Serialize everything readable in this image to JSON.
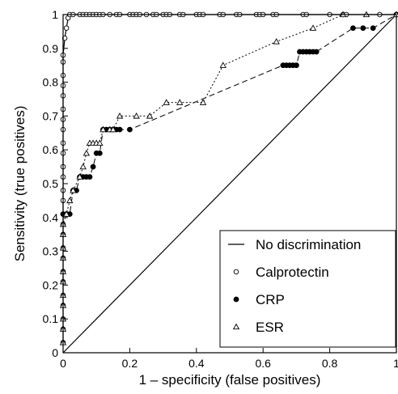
{
  "chart_data": {
    "type": "line",
    "xlabel": "1 – specificity (false positives)",
    "ylabel": "Sensitivity (true positives)",
    "xlim": [
      0,
      1
    ],
    "ylim": [
      0,
      1
    ],
    "x_ticks": [
      0,
      0.2,
      0.4,
      0.6,
      0.8,
      1
    ],
    "x_tick_labels": [
      "0",
      "0.2",
      "0.4",
      "0.6",
      "0.8",
      "1"
    ],
    "y_ticks": [
      0,
      0.1,
      0.2,
      0.3,
      0.4,
      0.5,
      0.6,
      0.7,
      0.8,
      0.9,
      1
    ],
    "y_tick_labels": [
      "0",
      "0.1",
      "0.2",
      "0.3",
      "0.4",
      "0.5",
      "0.6",
      "0.7",
      "0.8",
      "0.9",
      "1"
    ],
    "grid": false,
    "legend_position": "bottom-right",
    "series": [
      {
        "name": "No discrimination",
        "line": "solid",
        "marker": "none",
        "x": [
          0,
          1
        ],
        "y": [
          0,
          1
        ]
      },
      {
        "name": "Calprotectin",
        "line": "solid",
        "marker": "open-circle",
        "x": [
          0,
          0,
          0,
          0,
          0,
          0,
          0,
          0,
          0,
          0,
          0,
          0,
          0,
          0,
          0,
          0,
          0,
          0,
          0,
          0,
          0,
          0,
          0,
          0,
          0,
          0,
          0.005,
          0.01,
          0.015,
          0.02,
          0.03,
          0.05,
          0.06,
          0.07,
          0.08,
          0.09,
          0.1,
          0.11,
          0.12,
          0.14,
          0.16,
          0.17,
          0.2,
          0.21,
          0.22,
          0.23,
          0.25,
          0.27,
          0.28,
          0.3,
          0.31,
          0.32,
          0.35,
          0.36,
          0.4,
          0.41,
          0.42,
          0.47,
          0.48,
          0.52,
          0.53,
          0.58,
          0.59,
          0.6,
          0.63,
          0.64,
          0.72,
          0.73,
          0.8,
          0.84,
          0.85,
          0.95,
          1
        ],
        "y": [
          0.03,
          0.07,
          0.1,
          0.14,
          0.17,
          0.21,
          0.24,
          0.28,
          0.31,
          0.35,
          0.38,
          0.41,
          0.45,
          0.48,
          0.52,
          0.55,
          0.59,
          0.62,
          0.66,
          0.69,
          0.72,
          0.76,
          0.79,
          0.82,
          0.86,
          0.88,
          0.93,
          0.96,
          0.99,
          1,
          1,
          1,
          1,
          1,
          1,
          1,
          1,
          1,
          1,
          1,
          1,
          1,
          1,
          1,
          1,
          1,
          1,
          1,
          1,
          1,
          1,
          1,
          1,
          1,
          1,
          1,
          1,
          1,
          1,
          1,
          1,
          1,
          1,
          1,
          1,
          1,
          1,
          1,
          1,
          1,
          1,
          1,
          1
        ]
      },
      {
        "name": "CRP",
        "line": "dashed",
        "marker": "filled-circle",
        "x": [
          0,
          0.01,
          0.02,
          0.03,
          0.04,
          0.05,
          0.06,
          0.07,
          0.08,
          0.09,
          0.1,
          0.11,
          0.12,
          0.13,
          0.14,
          0.15,
          0.16,
          0.17,
          0.2,
          0.66,
          0.67,
          0.68,
          0.69,
          0.7,
          0.71,
          0.72,
          0.73,
          0.74,
          0.75,
          0.76,
          0.87,
          0.9,
          0.93,
          1
        ],
        "y": [
          0.41,
          0.41,
          0.41,
          0.48,
          0.48,
          0.52,
          0.52,
          0.52,
          0.52,
          0.55,
          0.59,
          0.59,
          0.66,
          0.66,
          0.66,
          0.66,
          0.66,
          0.66,
          0.66,
          0.85,
          0.85,
          0.85,
          0.85,
          0.85,
          0.89,
          0.89,
          0.89,
          0.89,
          0.89,
          0.89,
          0.96,
          0.96,
          0.96,
          1
        ]
      },
      {
        "name": "ESR",
        "line": "dotted",
        "marker": "open-triangle",
        "x": [
          0,
          0,
          0,
          0,
          0,
          0,
          0,
          0,
          0,
          0,
          0,
          0.01,
          0.02,
          0.03,
          0.05,
          0.06,
          0.07,
          0.08,
          0.09,
          0.1,
          0.11,
          0.12,
          0.14,
          0.15,
          0.17,
          0.22,
          0.26,
          0.31,
          0.35,
          0.42,
          0.48,
          0.64,
          0.75,
          0.84,
          0.91,
          1
        ],
        "y": [
          0.03,
          0.07,
          0.1,
          0.14,
          0.17,
          0.21,
          0.24,
          0.28,
          0.31,
          0.35,
          0.38,
          0.41,
          0.45,
          0.48,
          0.52,
          0.55,
          0.59,
          0.62,
          0.62,
          0.62,
          0.62,
          0.66,
          0.66,
          0.66,
          0.7,
          0.7,
          0.7,
          0.74,
          0.74,
          0.74,
          0.85,
          0.92,
          0.96,
          1,
          1,
          1
        ]
      }
    ]
  }
}
